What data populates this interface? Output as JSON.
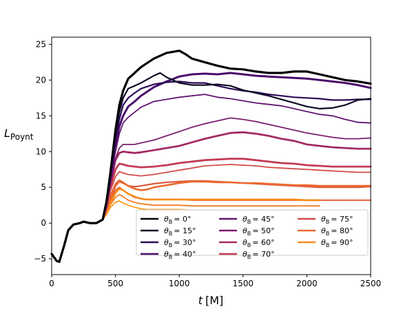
{
  "chart_data": {
    "type": "line",
    "xlabel_var": "t",
    "xlabel_unit": "[M]",
    "ylabel_var": "L",
    "ylabel_sub": "Poynt",
    "xlim": [
      0,
      2500
    ],
    "ylim": [
      -7.2,
      26
    ],
    "xticks": [
      0,
      500,
      1000,
      1500,
      2000,
      2500
    ],
    "yticks": [
      -5,
      0,
      5,
      10,
      15,
      20,
      25
    ],
    "grid": false,
    "legend_position": "lower-right",
    "legend_prefix": "θ",
    "legend_sub": "B",
    "series": [
      {
        "name": "= 0°",
        "color": "#000004",
        "width": 3.2,
        "x": [
          0,
          40,
          60,
          100,
          130,
          170,
          220,
          250,
          300,
          350,
          400,
          430,
          460,
          500,
          530,
          560,
          600,
          650,
          700,
          800,
          900,
          1000,
          1050,
          1100,
          1200,
          1300,
          1400,
          1500,
          1600,
          1700,
          1800,
          1900,
          2000,
          2100,
          2200,
          2300,
          2400,
          2500
        ],
        "y": [
          -4.3,
          -5.3,
          -5.4,
          -3,
          -1,
          -0.2,
          0,
          0.2,
          0,
          0,
          0.5,
          3,
          7,
          13,
          16.5,
          18.5,
          20.2,
          21,
          21.8,
          23,
          23.8,
          24.1,
          23.6,
          23,
          22.5,
          22,
          21.6,
          21.5,
          21.2,
          21,
          21,
          21.2,
          21.2,
          20.8,
          20.4,
          20,
          19.8,
          19.5
        ]
      },
      {
        "name": "= 15°",
        "color": "#0b0a24",
        "width": 2.2,
        "x": [
          0,
          40,
          60,
          100,
          130,
          170,
          220,
          250,
          300,
          350,
          400,
          430,
          460,
          500,
          530,
          560,
          600,
          650,
          700,
          800,
          850,
          900,
          1000,
          1100,
          1200,
          1300,
          1400,
          1500,
          1600,
          1700,
          1800,
          1900,
          2000,
          2100,
          2200,
          2300,
          2400,
          2500
        ],
        "y": [
          -4.3,
          -5.3,
          -5.4,
          -3,
          -1,
          -0.2,
          0,
          0.2,
          0,
          0,
          0.5,
          3,
          7,
          12.5,
          15.5,
          17.5,
          18.8,
          19.2,
          19.6,
          20.6,
          21,
          20.4,
          19.6,
          19.3,
          19.3,
          19.4,
          19.2,
          18.6,
          18.2,
          17.8,
          17.3,
          16.8,
          16.3,
          16,
          16.1,
          16.5,
          17.2,
          17.4
        ]
      },
      {
        "name": "= 30°",
        "color": "#2b0a55",
        "width": 2.2,
        "x": [
          0,
          40,
          60,
          100,
          130,
          170,
          220,
          250,
          300,
          350,
          400,
          430,
          460,
          500,
          530,
          560,
          600,
          650,
          700,
          800,
          900,
          1000,
          1100,
          1200,
          1300,
          1400,
          1500,
          1600,
          1700,
          1800,
          1900,
          2000,
          2100,
          2200,
          2300,
          2400,
          2500
        ],
        "y": [
          -4.3,
          -5.3,
          -5.4,
          -3,
          -1,
          -0.2,
          0,
          0.2,
          0,
          0,
          0.5,
          3,
          6.5,
          12,
          14.5,
          16.5,
          17.5,
          18.2,
          18.8,
          19.4,
          19.7,
          19.8,
          19.6,
          19.6,
          19.2,
          18.8,
          18.5,
          18.3,
          18,
          17.8,
          17.6,
          17.5,
          17.4,
          17.2,
          17.2,
          17.3,
          17.3
        ]
      },
      {
        "name": "= 40°",
        "color": "#4a0c6b",
        "width": 3,
        "x": [
          0,
          40,
          60,
          100,
          130,
          170,
          220,
          250,
          300,
          350,
          400,
          430,
          460,
          500,
          530,
          560,
          600,
          650,
          700,
          800,
          900,
          1000,
          1100,
          1200,
          1300,
          1400,
          1500,
          1600,
          1700,
          1800,
          1900,
          2000,
          2100,
          2200,
          2300,
          2400,
          2500
        ],
        "y": [
          -4.3,
          -5.3,
          -5.4,
          -3,
          -1,
          -0.2,
          0,
          0.2,
          0,
          0,
          0.5,
          3,
          6.5,
          11,
          13.5,
          15,
          16.3,
          17,
          17.8,
          19,
          19.8,
          20.5,
          20.8,
          20.9,
          20.8,
          21,
          20.8,
          20.6,
          20.5,
          20.4,
          20.3,
          20.2,
          20,
          19.8,
          19.6,
          19.3,
          18.9
        ]
      },
      {
        "name": "= 45°",
        "color": "#611470",
        "width": 1.8,
        "x": [
          0,
          40,
          60,
          100,
          130,
          170,
          220,
          250,
          300,
          350,
          400,
          430,
          460,
          500,
          530,
          560,
          600,
          650,
          700,
          800,
          900,
          1000,
          1100,
          1200,
          1300,
          1400,
          1500,
          1600,
          1700,
          1800,
          1900,
          2000,
          2100,
          2200,
          2300,
          2400,
          2500
        ],
        "y": [
          -4.3,
          -5.3,
          -5.4,
          -3,
          -1,
          -0.2,
          0,
          0.2,
          0,
          0,
          0.5,
          2.8,
          6,
          10,
          12.5,
          14,
          14.8,
          15.5,
          16.2,
          17,
          17.3,
          17.6,
          17.8,
          18,
          17.6,
          17.4,
          17.1,
          16.8,
          16.6,
          16.4,
          16,
          15.6,
          15.2,
          15,
          14.5,
          14.1,
          14
        ]
      },
      {
        "name": "= 50°",
        "color": "#7b1d6d",
        "width": 1.8,
        "x": [
          0,
          40,
          60,
          100,
          130,
          170,
          220,
          250,
          300,
          350,
          400,
          430,
          460,
          500,
          530,
          560,
          600,
          650,
          700,
          800,
          900,
          1000,
          1100,
          1200,
          1300,
          1400,
          1500,
          1600,
          1700,
          1800,
          1900,
          2000,
          2100,
          2200,
          2300,
          2400,
          2500
        ],
        "y": [
          -4.3,
          -5.3,
          -5.4,
          -3,
          -1,
          -0.2,
          0,
          0.2,
          0,
          0,
          0.5,
          2.5,
          5.5,
          9,
          10.5,
          11,
          11,
          11,
          11.2,
          11.6,
          12.2,
          12.8,
          13.4,
          13.9,
          14.3,
          14.7,
          14.5,
          14.2,
          13.8,
          13.4,
          13,
          12.6,
          12.3,
          12,
          11.8,
          11.8,
          11.9
        ]
      },
      {
        "name": "= 60°",
        "color": "#a22b62",
        "width": 2.8,
        "x": [
          0,
          40,
          60,
          100,
          130,
          170,
          220,
          250,
          300,
          350,
          400,
          430,
          460,
          500,
          530,
          560,
          600,
          650,
          700,
          800,
          900,
          1000,
          1100,
          1200,
          1300,
          1400,
          1500,
          1600,
          1700,
          1800,
          1900,
          2000,
          2100,
          2200,
          2300,
          2400,
          2500
        ],
        "y": [
          -4.3,
          -5.3,
          -5.4,
          -3,
          -1,
          -0.2,
          0,
          0.2,
          0,
          0,
          0.5,
          2.5,
          5.5,
          8.8,
          9.8,
          10,
          9.9,
          9.8,
          9.9,
          10.2,
          10.5,
          10.8,
          11.3,
          11.8,
          12.2,
          12.6,
          12.7,
          12.5,
          12.2,
          11.8,
          11.5,
          11,
          10.8,
          10.6,
          10.5,
          10.4,
          10.4
        ]
      },
      {
        "name": "= 70°",
        "color": "#c33b54",
        "width": 2.8,
        "x": [
          0,
          40,
          60,
          100,
          130,
          170,
          220,
          250,
          300,
          350,
          400,
          430,
          460,
          500,
          530,
          560,
          600,
          650,
          700,
          800,
          900,
          1000,
          1100,
          1200,
          1300,
          1400,
          1500,
          1600,
          1700,
          1800,
          1900,
          2000,
          2100,
          2200,
          2300,
          2400,
          2500
        ],
        "y": [
          -4.3,
          -5.3,
          -5.4,
          -3,
          -1,
          -0.2,
          0,
          0.2,
          0,
          0,
          0.5,
          2.2,
          5,
          7.5,
          8.3,
          8.2,
          8,
          7.9,
          7.8,
          7.9,
          8.1,
          8.4,
          8.6,
          8.8,
          8.9,
          9,
          9,
          8.8,
          8.6,
          8.4,
          8.3,
          8.1,
          8,
          7.9,
          7.9,
          7.9,
          7.9
        ]
      },
      {
        "name": "= 75°",
        "color": "#d24c4a",
        "width": 1.8,
        "x": [
          0,
          40,
          60,
          100,
          130,
          170,
          220,
          250,
          300,
          350,
          400,
          430,
          460,
          500,
          530,
          560,
          600,
          650,
          700,
          800,
          900,
          1000,
          1100,
          1200,
          1300,
          1400,
          1500,
          1600,
          1700,
          1800,
          1900,
          2000,
          2100,
          2200,
          2300,
          2400,
          2500
        ],
        "y": [
          -4.3,
          -5.3,
          -5.4,
          -3,
          -1,
          -0.2,
          0,
          0.2,
          0,
          0,
          0.5,
          2,
          4.5,
          6.5,
          7.2,
          7,
          6.8,
          6.7,
          6.6,
          6.8,
          7.1,
          7.4,
          7.7,
          8,
          8.1,
          8.2,
          8.1,
          8,
          7.8,
          7.7,
          7.6,
          7.5,
          7.4,
          7.3,
          7.2,
          7.1,
          7.1
        ]
      },
      {
        "name": "= 80°",
        "color": "#ea6a30",
        "width": 2.6,
        "x": [
          0,
          40,
          60,
          100,
          130,
          170,
          220,
          250,
          300,
          350,
          400,
          430,
          460,
          500,
          530,
          560,
          600,
          650,
          700,
          750,
          800,
          900,
          1000,
          1100,
          1200,
          1300,
          1400,
          1500,
          1600,
          1700,
          1800,
          1900,
          2000,
          2100,
          2200,
          2300,
          2400,
          2500
        ],
        "y": [
          -4.3,
          -5.3,
          -5.4,
          -3,
          -1,
          -0.2,
          0,
          0.2,
          0,
          0,
          0.5,
          1.8,
          3.5,
          5.2,
          5.8,
          5.6,
          5.2,
          4.8,
          4.6,
          4.7,
          5,
          5.3,
          5.6,
          5.8,
          5.8,
          5.7,
          5.7,
          5.6,
          5.6,
          5.5,
          5.4,
          5.3,
          5.3,
          5.2,
          5.2,
          5.2,
          5.2,
          5.2
        ]
      },
      {
        "name": "= 90°",
        "color": "#f88a1c",
        "width": 2.6,
        "x": [
          0,
          40,
          60,
          100,
          130,
          170,
          220,
          250,
          300,
          350,
          400,
          430,
          460,
          500,
          530,
          560,
          600,
          650,
          700,
          750,
          800,
          900,
          1000,
          1100,
          1200,
          1300,
          1400,
          1500,
          1600,
          1700,
          1800,
          1900,
          2000,
          2100
        ],
        "y": [
          -4.3,
          -5.3,
          -5.4,
          -3,
          -1,
          -0.2,
          0,
          0.2,
          0,
          0,
          0.5,
          1.5,
          2.8,
          4.2,
          4.8,
          4.6,
          4.1,
          3.7,
          3.4,
          3.3,
          3.3,
          3.3,
          3.3,
          3.3,
          3.3,
          3.3,
          3.3,
          3.3,
          3.3,
          3.3,
          3.3,
          3.3,
          3.2,
          3.2
        ]
      },
      {
        "name": "",
        "color": "#dc5a3d",
        "width": 2.2,
        "x": [
          0,
          40,
          60,
          100,
          130,
          170,
          220,
          250,
          300,
          350,
          400,
          430,
          460,
          500,
          530,
          560,
          600,
          650,
          700,
          800,
          900,
          1000,
          1100,
          1200,
          1300,
          1400,
          1500,
          1600,
          1700,
          1800,
          1900,
          2000,
          2100,
          2200,
          2300,
          2400,
          2500
        ],
        "y": [
          -4.3,
          -5.3,
          -5.4,
          -3,
          -1,
          -0.2,
          0,
          0.2,
          0,
          0,
          0.5,
          1.8,
          3.8,
          5.5,
          6,
          5.7,
          5.2,
          5.1,
          5.2,
          5.5,
          5.7,
          5.8,
          5.9,
          5.9,
          5.8,
          5.7,
          5.6,
          5.5,
          5.4,
          5.3,
          5.2,
          5.1,
          5,
          5,
          5,
          5,
          5.1
        ]
      },
      {
        "name": "",
        "color": "#e46237",
        "width": 2,
        "x": [
          0,
          40,
          60,
          100,
          130,
          170,
          220,
          250,
          300,
          350,
          400,
          430,
          460,
          500,
          530,
          560,
          600,
          650,
          700,
          750,
          800,
          900,
          1000,
          1100,
          1200,
          1300,
          1400,
          1500,
          1600,
          1700,
          1800,
          1900,
          2000,
          2100,
          2200,
          2300,
          2400,
          2500
        ],
        "y": [
          -4.3,
          -5.3,
          -5.4,
          -3,
          -1,
          -0.2,
          0,
          0.2,
          0,
          0,
          0.5,
          1.6,
          3.2,
          4.6,
          5,
          4.6,
          4.1,
          3.6,
          3.4,
          3.3,
          3.3,
          3.3,
          3.3,
          3.2,
          3.2,
          3.2,
          3.2,
          3.2,
          3.2,
          3.2,
          3.2,
          3.2,
          3.2,
          3.2,
          3.2,
          3.2,
          3.2,
          3.2
        ]
      },
      {
        "name": "",
        "color": "#f07b24",
        "width": 1.8,
        "x": [
          0,
          40,
          60,
          100,
          130,
          170,
          220,
          250,
          300,
          350,
          400,
          430,
          460,
          500,
          530,
          560,
          600,
          650,
          700,
          750,
          800,
          900,
          1000,
          1100,
          1200,
          1300,
          1400,
          1500,
          1600,
          1700,
          1800,
          1900,
          2000,
          2100
        ],
        "y": [
          -4.3,
          -5.3,
          -5.4,
          -3,
          -1,
          -0.2,
          0,
          0.2,
          0,
          0,
          0.5,
          1.4,
          2.6,
          3.6,
          4,
          3.7,
          3.2,
          2.9,
          2.7,
          2.6,
          2.5,
          2.5,
          2.5,
          2.4,
          2.4,
          2.4,
          2.4,
          2.4,
          2.4,
          2.4,
          2.4,
          2.4,
          2.4,
          2.4
        ]
      },
      {
        "name": "",
        "color": "#fb9a12",
        "width": 1.8,
        "x": [
          0,
          40,
          60,
          100,
          130,
          170,
          220,
          250,
          300,
          350,
          400,
          430,
          460,
          500,
          530,
          560,
          600,
          650,
          700,
          750,
          800,
          900,
          1000,
          1100,
          1200,
          1300,
          1400,
          1500,
          1600,
          1700,
          1800,
          1900,
          2000,
          2100
        ],
        "y": [
          -4.3,
          -5.3,
          -5.4,
          -3,
          -1,
          -0.2,
          0,
          0.2,
          0,
          0,
          0.5,
          1.2,
          2.2,
          2.9,
          3.1,
          2.8,
          2.5,
          2.2,
          2,
          1.9,
          1.9,
          1.9,
          1.9,
          1.8,
          1.8,
          1.8,
          1.8,
          1.8,
          1.8,
          1.8,
          1.8,
          1.8,
          1.8,
          1.8
        ]
      }
    ]
  }
}
